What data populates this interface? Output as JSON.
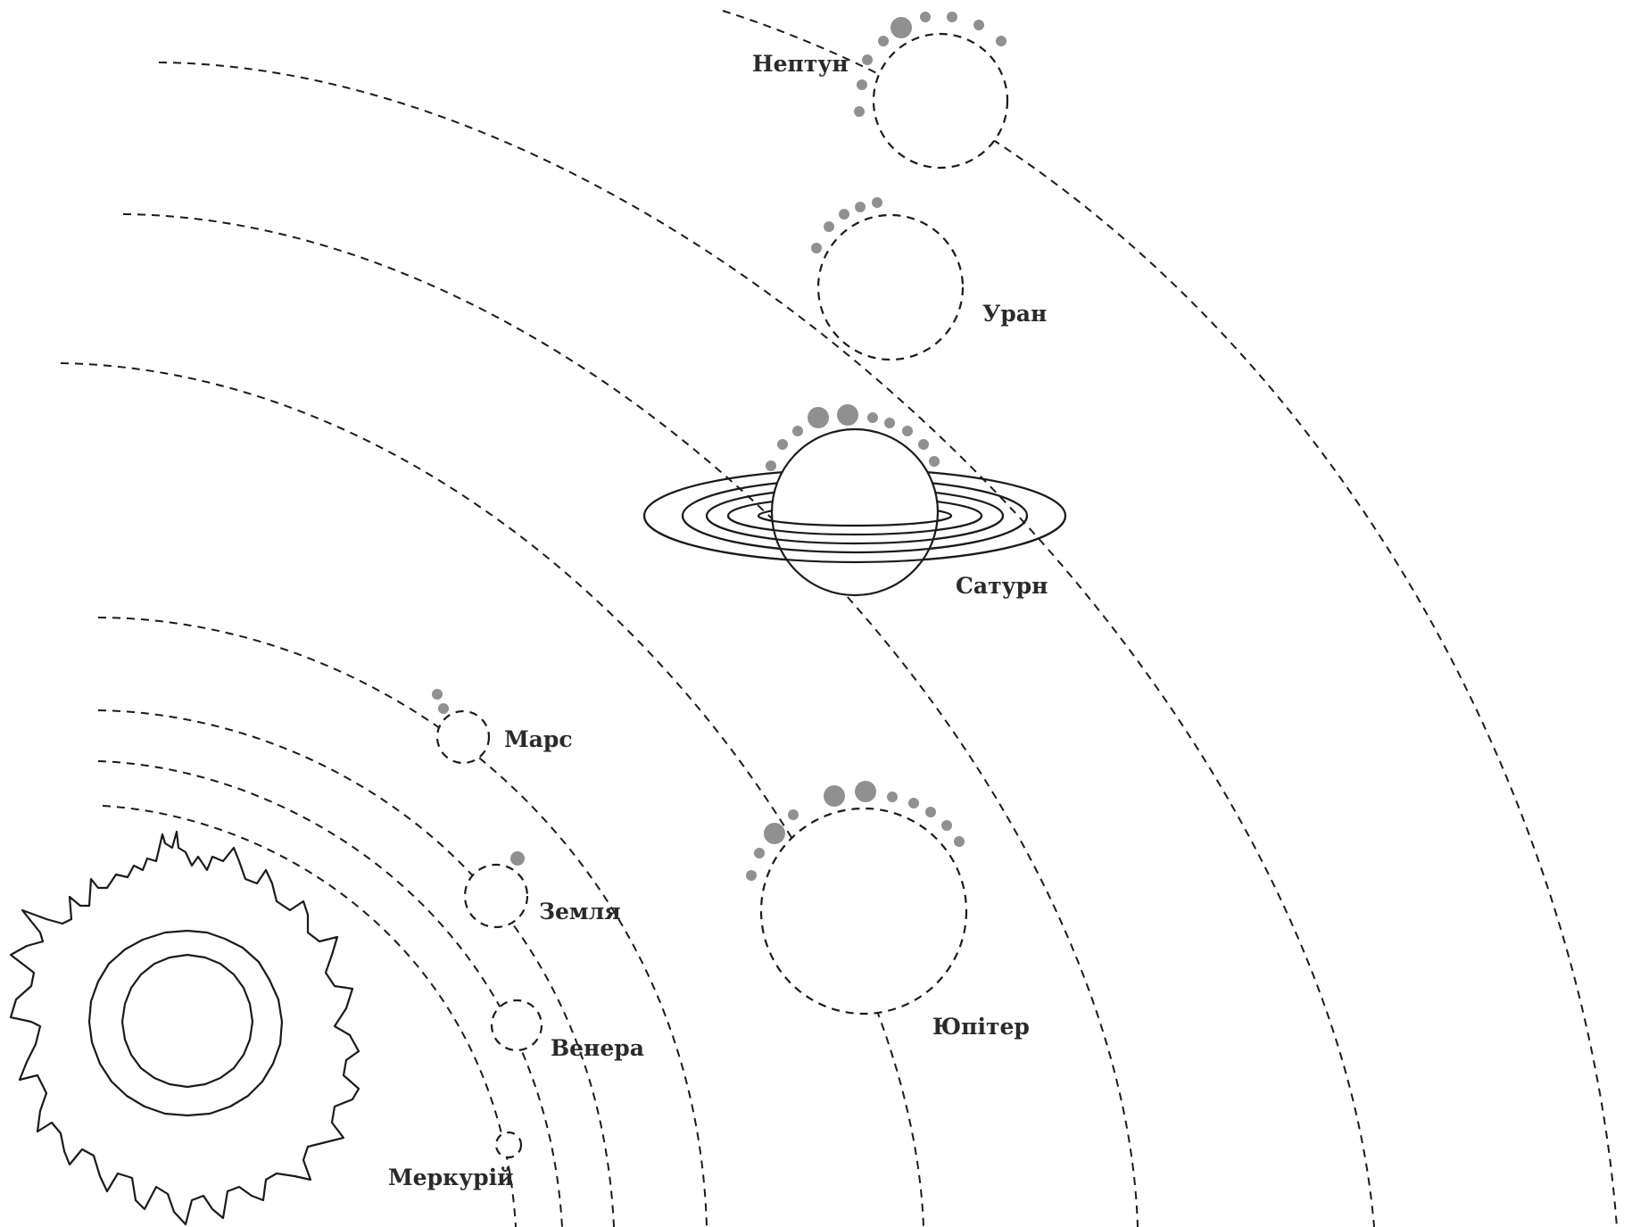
{
  "diagram": {
    "labels": {
      "mercury": "Меркурій",
      "venus": "Венера",
      "earth": "Земля",
      "mars": "Марс",
      "jupiter": "Юпітер",
      "saturn": "Сатурн",
      "uranus": "Уран",
      "neptune": "Нептун"
    }
  },
  "colors": {
    "line": "#1a1a1a",
    "moon": "#909090",
    "label": "#2a2a2a",
    "background": "#ffffff"
  }
}
